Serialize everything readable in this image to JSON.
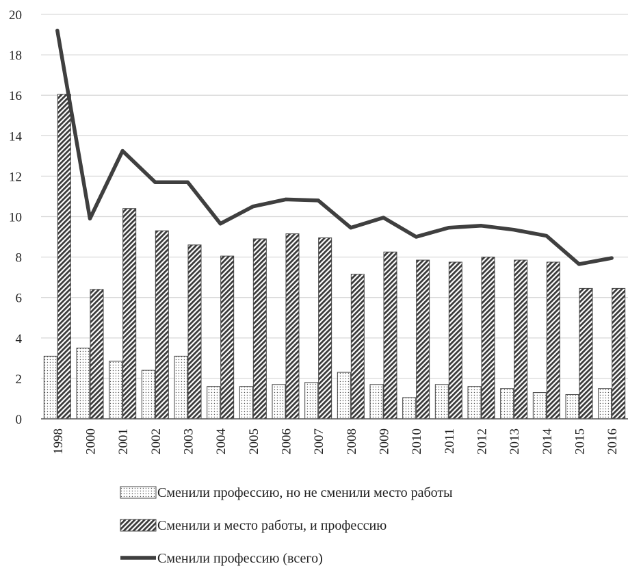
{
  "chart_data": {
    "type": "bar",
    "title": "",
    "xlabel": "",
    "ylabel": "",
    "ylim": [
      0,
      20
    ],
    "y_ticks": [
      "0",
      "2",
      "4",
      "6",
      "8",
      "10",
      "12",
      "14",
      "16",
      "18",
      "20"
    ],
    "grid": true,
    "legend_position": "bottom",
    "categories": [
      "1998",
      "2000",
      "2001",
      "2002",
      "2003",
      "2004",
      "2005",
      "2006",
      "2007",
      "2008",
      "2009",
      "2010",
      "2011",
      "2012",
      "2013",
      "2014",
      "2015",
      "2016"
    ],
    "series": [
      {
        "name": "Сменили профессию, но не сменили место работы",
        "kind": "bar",
        "pattern": "dots",
        "values": [
          3.1,
          3.5,
          2.85,
          2.4,
          3.1,
          1.6,
          1.6,
          1.7,
          1.8,
          2.3,
          1.7,
          1.05,
          1.7,
          1.6,
          1.5,
          1.3,
          1.2,
          1.5
        ]
      },
      {
        "name": "Сменили и место работы, и профессию",
        "kind": "bar",
        "pattern": "diagonal-hatch",
        "values": [
          16.05,
          6.4,
          10.4,
          9.3,
          8.6,
          8.05,
          8.9,
          9.15,
          8.95,
          7.15,
          8.25,
          7.85,
          7.75,
          8.0,
          7.85,
          7.75,
          6.45,
          6.45
        ]
      },
      {
        "name": "Сменили профессию (всего)",
        "kind": "line",
        "values": [
          19.2,
          9.9,
          13.25,
          11.7,
          11.7,
          9.65,
          10.5,
          10.85,
          10.8,
          9.45,
          9.95,
          9.0,
          9.45,
          9.55,
          9.35,
          9.05,
          7.65,
          7.95
        ]
      }
    ],
    "colors": {
      "line": "#3f3f3f",
      "bar_outline": "#444444",
      "grid": "#d9d9d9",
      "axis": "#555555"
    }
  }
}
